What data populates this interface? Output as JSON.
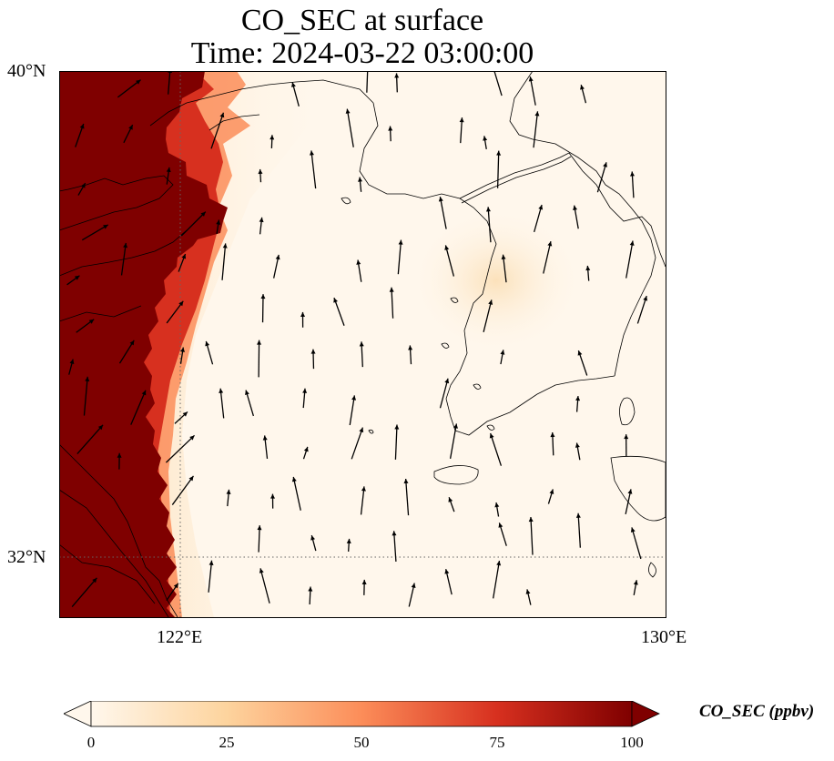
{
  "title": {
    "line1": "CO_SEC at surface",
    "line2": "Time: 2024-03-22 03:00:00"
  },
  "map": {
    "lat_labels": [
      "40°N",
      "32°N"
    ],
    "lon_labels": [
      "122°E",
      "130°E"
    ],
    "extent_deg": {
      "lon_min": 120,
      "lon_max": 130,
      "lat_min": 31,
      "lat_max": 40
    },
    "gridlines": {
      "lon": [
        122
      ],
      "lat": [
        32
      ],
      "style": "dotted"
    },
    "coastlines": true,
    "wind_vectors": true,
    "colormap": "OrRd"
  },
  "colorbar": {
    "label": "CO_SEC (ppbv)",
    "ticks": [
      "0",
      "25",
      "50",
      "75",
      "100"
    ],
    "range": [
      0,
      100
    ],
    "extend": "both",
    "colors": [
      "#fff7ec",
      "#fdd49e",
      "#fc8d59",
      "#d7301f",
      "#7f0000"
    ]
  }
}
